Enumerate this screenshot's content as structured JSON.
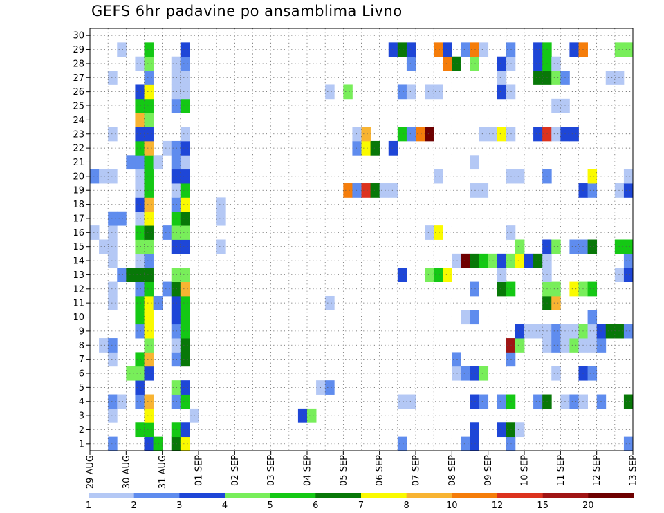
{
  "title": "GEFS 6hr padavine po ansamblima Livno",
  "chart_data": {
    "type": "heatmap",
    "title": "GEFS 6hr padavine po ansamblima Livno",
    "xlabel": "",
    "ylabel": "",
    "x_tick_labels": [
      "29 AUG",
      "30 AUG",
      "31 AUG",
      "01 SEP",
      "02 SEP",
      "03 SEP",
      "04 SEP",
      "05 SEP",
      "06 SEP",
      "07 SEP",
      "08 SEP",
      "09 SEP",
      "10 SEP",
      "11 SEP",
      "12 SEP",
      "13 SEP"
    ],
    "x_steps_per_day": 4,
    "x_step_count": 60,
    "y_members": [
      1,
      2,
      3,
      4,
      5,
      6,
      7,
      8,
      9,
      10,
      11,
      12,
      13,
      14,
      15,
      16,
      17,
      18,
      19,
      20,
      21,
      22,
      23,
      24,
      25,
      26,
      27,
      28,
      29,
      30
    ],
    "legend": {
      "thresholds": [
        "1",
        "2",
        "3",
        "4",
        "5",
        "6",
        "7",
        "8",
        "10",
        "12",
        "15",
        "20"
      ],
      "colors": [
        "#b4c8f5",
        "#5f8cee",
        "#1e46d7",
        "#78ee5a",
        "#14c814",
        "#087808",
        "#fafa00",
        "#f8b432",
        "#f57d0a",
        "#dc321e",
        "#a01414",
        "#6e0000"
      ]
    },
    "cells": [
      [
        1,
        2,
        2
      ],
      [
        1,
        6,
        3
      ],
      [
        1,
        7,
        5
      ],
      [
        1,
        9,
        6
      ],
      [
        1,
        10,
        7
      ],
      [
        1,
        34,
        2
      ],
      [
        1,
        41,
        2
      ],
      [
        1,
        42,
        3
      ],
      [
        1,
        46,
        2
      ],
      [
        1,
        59,
        2
      ],
      [
        2,
        5,
        5
      ],
      [
        2,
        6,
        5
      ],
      [
        2,
        9,
        5
      ],
      [
        2,
        10,
        3
      ],
      [
        2,
        42,
        3
      ],
      [
        2,
        45,
        3
      ],
      [
        2,
        46,
        6
      ],
      [
        2,
        47,
        1
      ],
      [
        3,
        2,
        1
      ],
      [
        3,
        6,
        7
      ],
      [
        3,
        11,
        1
      ],
      [
        3,
        23,
        3
      ],
      [
        3,
        24,
        4
      ],
      [
        4,
        2,
        2
      ],
      [
        4,
        3,
        1
      ],
      [
        4,
        5,
        2
      ],
      [
        4,
        6,
        8
      ],
      [
        4,
        9,
        2
      ],
      [
        4,
        10,
        5
      ],
      [
        4,
        34,
        1
      ],
      [
        4,
        35,
        1
      ],
      [
        4,
        42,
        3
      ],
      [
        4,
        43,
        2
      ],
      [
        4,
        45,
        2
      ],
      [
        4,
        46,
        5
      ],
      [
        4,
        49,
        2
      ],
      [
        4,
        50,
        6
      ],
      [
        4,
        52,
        1
      ],
      [
        4,
        53,
        2
      ],
      [
        4,
        54,
        1
      ],
      [
        4,
        56,
        2
      ],
      [
        4,
        59,
        6
      ],
      [
        5,
        5,
        3
      ],
      [
        5,
        9,
        4
      ],
      [
        5,
        10,
        3
      ],
      [
        5,
        25,
        1
      ],
      [
        5,
        26,
        2
      ],
      [
        6,
        4,
        4
      ],
      [
        6,
        5,
        4
      ],
      [
        6,
        6,
        3
      ],
      [
        6,
        40,
        1
      ],
      [
        6,
        41,
        2
      ],
      [
        6,
        42,
        3
      ],
      [
        6,
        43,
        4
      ],
      [
        6,
        51,
        1
      ],
      [
        6,
        54,
        3
      ],
      [
        6,
        55,
        2
      ],
      [
        7,
        2,
        1
      ],
      [
        7,
        5,
        5
      ],
      [
        7,
        6,
        8
      ],
      [
        7,
        9,
        2
      ],
      [
        7,
        10,
        6
      ],
      [
        7,
        40,
        2
      ],
      [
        7,
        46,
        2
      ],
      [
        8,
        1,
        1
      ],
      [
        8,
        2,
        2
      ],
      [
        8,
        6,
        4
      ],
      [
        8,
        9,
        1
      ],
      [
        8,
        10,
        6
      ],
      [
        8,
        46,
        11
      ],
      [
        8,
        47,
        4
      ],
      [
        8,
        50,
        1
      ],
      [
        8,
        51,
        2
      ],
      [
        8,
        52,
        1
      ],
      [
        8,
        53,
        4
      ],
      [
        8,
        54,
        1
      ],
      [
        8,
        55,
        1
      ],
      [
        8,
        56,
        2
      ],
      [
        9,
        5,
        2
      ],
      [
        9,
        6,
        7
      ],
      [
        9,
        9,
        2
      ],
      [
        9,
        10,
        5
      ],
      [
        9,
        47,
        3
      ],
      [
        9,
        48,
        1
      ],
      [
        9,
        49,
        1
      ],
      [
        9,
        50,
        1
      ],
      [
        9,
        51,
        2
      ],
      [
        9,
        52,
        1
      ],
      [
        9,
        53,
        1
      ],
      [
        9,
        54,
        4
      ],
      [
        9,
        55,
        1
      ],
      [
        9,
        56,
        3
      ],
      [
        9,
        57,
        6
      ],
      [
        9,
        58,
        6
      ],
      [
        9,
        59,
        2
      ],
      [
        10,
        5,
        5
      ],
      [
        10,
        6,
        7
      ],
      [
        10,
        9,
        3
      ],
      [
        10,
        10,
        5
      ],
      [
        10,
        41,
        1
      ],
      [
        10,
        42,
        2
      ],
      [
        10,
        55,
        2
      ],
      [
        11,
        2,
        1
      ],
      [
        11,
        5,
        5
      ],
      [
        11,
        6,
        7
      ],
      [
        11,
        7,
        2
      ],
      [
        11,
        9,
        3
      ],
      [
        11,
        10,
        5
      ],
      [
        11,
        26,
        1
      ],
      [
        11,
        50,
        6
      ],
      [
        11,
        51,
        8
      ],
      [
        12,
        2,
        1
      ],
      [
        12,
        5,
        2
      ],
      [
        12,
        6,
        5
      ],
      [
        12,
        8,
        2
      ],
      [
        12,
        9,
        6
      ],
      [
        12,
        10,
        8
      ],
      [
        12,
        42,
        2
      ],
      [
        12,
        45,
        6
      ],
      [
        12,
        46,
        5
      ],
      [
        12,
        50,
        4
      ],
      [
        12,
        51,
        4
      ],
      [
        12,
        53,
        7
      ],
      [
        12,
        54,
        4
      ],
      [
        12,
        55,
        5
      ],
      [
        13,
        3,
        2
      ],
      [
        13,
        4,
        6
      ],
      [
        13,
        5,
        6
      ],
      [
        13,
        6,
        6
      ],
      [
        13,
        9,
        4
      ],
      [
        13,
        10,
        4
      ],
      [
        13,
        34,
        3
      ],
      [
        13,
        37,
        4
      ],
      [
        13,
        38,
        5
      ],
      [
        13,
        39,
        7
      ],
      [
        13,
        45,
        1
      ],
      [
        13,
        50,
        1
      ],
      [
        13,
        58,
        1
      ],
      [
        13,
        59,
        3
      ],
      [
        14,
        2,
        1
      ],
      [
        14,
        5,
        1
      ],
      [
        14,
        6,
        2
      ],
      [
        14,
        40,
        1
      ],
      [
        14,
        41,
        12
      ],
      [
        14,
        42,
        6
      ],
      [
        14,
        43,
        5
      ],
      [
        14,
        44,
        4
      ],
      [
        14,
        45,
        3
      ],
      [
        14,
        46,
        4
      ],
      [
        14,
        47,
        7
      ],
      [
        14,
        48,
        3
      ],
      [
        14,
        49,
        6
      ],
      [
        14,
        50,
        1
      ],
      [
        14,
        59,
        2
      ],
      [
        15,
        1,
        1
      ],
      [
        15,
        2,
        1
      ],
      [
        15,
        5,
        4
      ],
      [
        15,
        6,
        4
      ],
      [
        15,
        9,
        3
      ],
      [
        15,
        10,
        3
      ],
      [
        15,
        14,
        1
      ],
      [
        15,
        47,
        4
      ],
      [
        15,
        50,
        3
      ],
      [
        15,
        51,
        4
      ],
      [
        15,
        53,
        2
      ],
      [
        15,
        54,
        2
      ],
      [
        15,
        55,
        6
      ],
      [
        15,
        58,
        5
      ],
      [
        15,
        59,
        5
      ],
      [
        16,
        0,
        1
      ],
      [
        16,
        2,
        1
      ],
      [
        16,
        5,
        5
      ],
      [
        16,
        6,
        6
      ],
      [
        16,
        8,
        2
      ],
      [
        16,
        9,
        4
      ],
      [
        16,
        10,
        4
      ],
      [
        16,
        37,
        1
      ],
      [
        16,
        38,
        7
      ],
      [
        16,
        46,
        1
      ],
      [
        17,
        2,
        2
      ],
      [
        17,
        3,
        2
      ],
      [
        17,
        5,
        1
      ],
      [
        17,
        6,
        7
      ],
      [
        17,
        9,
        5
      ],
      [
        17,
        10,
        6
      ],
      [
        17,
        14,
        1
      ],
      [
        18,
        5,
        3
      ],
      [
        18,
        6,
        8
      ],
      [
        18,
        9,
        2
      ],
      [
        18,
        10,
        7
      ],
      [
        18,
        14,
        1
      ],
      [
        19,
        5,
        1
      ],
      [
        19,
        6,
        5
      ],
      [
        19,
        9,
        1
      ],
      [
        19,
        10,
        5
      ],
      [
        19,
        28,
        9
      ],
      [
        19,
        29,
        2
      ],
      [
        19,
        30,
        10
      ],
      [
        19,
        31,
        6
      ],
      [
        19,
        32,
        1
      ],
      [
        19,
        33,
        1
      ],
      [
        19,
        42,
        1
      ],
      [
        19,
        43,
        1
      ],
      [
        19,
        54,
        3
      ],
      [
        19,
        55,
        2
      ],
      [
        19,
        58,
        1
      ],
      [
        19,
        59,
        3
      ],
      [
        20,
        0,
        2
      ],
      [
        20,
        1,
        1
      ],
      [
        20,
        2,
        1
      ],
      [
        20,
        5,
        1
      ],
      [
        20,
        6,
        5
      ],
      [
        20,
        9,
        3
      ],
      [
        20,
        10,
        3
      ],
      [
        20,
        38,
        1
      ],
      [
        20,
        46,
        1
      ],
      [
        20,
        47,
        1
      ],
      [
        20,
        50,
        2
      ],
      [
        20,
        55,
        7
      ],
      [
        20,
        59,
        1
      ],
      [
        21,
        4,
        2
      ],
      [
        21,
        5,
        2
      ],
      [
        21,
        6,
        5
      ],
      [
        21,
        7,
        1
      ],
      [
        21,
        9,
        2
      ],
      [
        21,
        10,
        1
      ],
      [
        21,
        42,
        1
      ],
      [
        22,
        5,
        5
      ],
      [
        22,
        6,
        8
      ],
      [
        22,
        8,
        1
      ],
      [
        22,
        9,
        2
      ],
      [
        22,
        10,
        3
      ],
      [
        22,
        29,
        2
      ],
      [
        22,
        30,
        7
      ],
      [
        22,
        31,
        6
      ],
      [
        22,
        33,
        3
      ],
      [
        23,
        2,
        1
      ],
      [
        23,
        5,
        3
      ],
      [
        23,
        6,
        3
      ],
      [
        23,
        10,
        1
      ],
      [
        23,
        29,
        1
      ],
      [
        23,
        30,
        8
      ],
      [
        23,
        34,
        5
      ],
      [
        23,
        35,
        2
      ],
      [
        23,
        36,
        9
      ],
      [
        23,
        37,
        12
      ],
      [
        23,
        43,
        1
      ],
      [
        23,
        44,
        1
      ],
      [
        23,
        45,
        7
      ],
      [
        23,
        46,
        1
      ],
      [
        23,
        49,
        3
      ],
      [
        23,
        50,
        10
      ],
      [
        23,
        51,
        1
      ],
      [
        23,
        52,
        3
      ],
      [
        23,
        53,
        3
      ],
      [
        24,
        5,
        8
      ],
      [
        24,
        6,
        4
      ],
      [
        25,
        5,
        5
      ],
      [
        25,
        6,
        5
      ],
      [
        25,
        9,
        2
      ],
      [
        25,
        10,
        5
      ],
      [
        25,
        51,
        1
      ],
      [
        25,
        52,
        1
      ],
      [
        26,
        5,
        3
      ],
      [
        26,
        6,
        7
      ],
      [
        26,
        9,
        1
      ],
      [
        26,
        10,
        1
      ],
      [
        26,
        26,
        1
      ],
      [
        26,
        28,
        4
      ],
      [
        26,
        34,
        2
      ],
      [
        26,
        35,
        1
      ],
      [
        26,
        37,
        1
      ],
      [
        26,
        38,
        1
      ],
      [
        26,
        45,
        3
      ],
      [
        26,
        46,
        1
      ],
      [
        27,
        2,
        1
      ],
      [
        27,
        6,
        2
      ],
      [
        27,
        9,
        1
      ],
      [
        27,
        10,
        1
      ],
      [
        27,
        45,
        1
      ],
      [
        27,
        49,
        6
      ],
      [
        27,
        50,
        6
      ],
      [
        27,
        51,
        4
      ],
      [
        27,
        52,
        2
      ],
      [
        27,
        57,
        1
      ],
      [
        27,
        58,
        1
      ],
      [
        28,
        5,
        1
      ],
      [
        28,
        6,
        4
      ],
      [
        28,
        9,
        1
      ],
      [
        28,
        10,
        2
      ],
      [
        28,
        35,
        2
      ],
      [
        28,
        39,
        9
      ],
      [
        28,
        40,
        6
      ],
      [
        28,
        42,
        4
      ],
      [
        28,
        45,
        3
      ],
      [
        28,
        46,
        1
      ],
      [
        28,
        49,
        3
      ],
      [
        28,
        50,
        5
      ],
      [
        28,
        51,
        1
      ],
      [
        29,
        3,
        1
      ],
      [
        29,
        6,
        5
      ],
      [
        29,
        10,
        3
      ],
      [
        29,
        33,
        3
      ],
      [
        29,
        34,
        6
      ],
      [
        29,
        35,
        3
      ],
      [
        29,
        38,
        9
      ],
      [
        29,
        39,
        3
      ],
      [
        29,
        41,
        2
      ],
      [
        29,
        42,
        9
      ],
      [
        29,
        43,
        1
      ],
      [
        29,
        46,
        2
      ],
      [
        29,
        49,
        3
      ],
      [
        29,
        50,
        5
      ],
      [
        29,
        53,
        3
      ],
      [
        29,
        54,
        9
      ],
      [
        29,
        58,
        4
      ],
      [
        29,
        59,
        4
      ]
    ]
  }
}
